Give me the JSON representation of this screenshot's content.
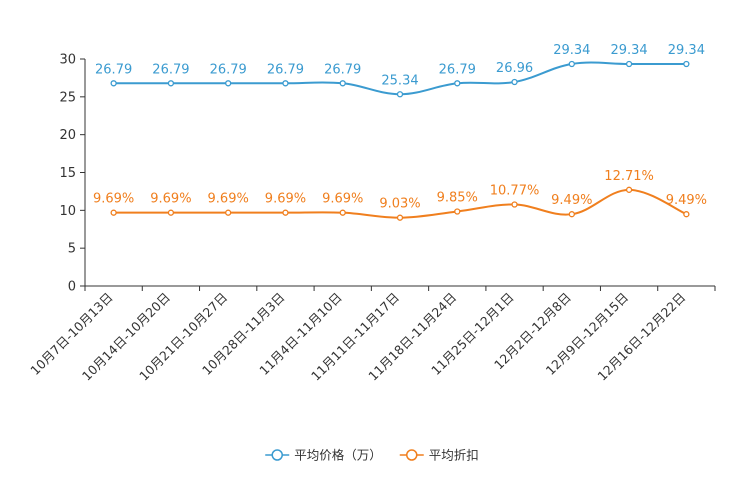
{
  "chart_data": {
    "type": "line",
    "categories": [
      "10月7日-10月13日",
      "10月14日-10月20日",
      "10月21日-10月27日",
      "10月28日-11月3日",
      "11月4日-11月10日",
      "11月11日-11月17日",
      "11月18日-11月24日",
      "11月25日-12月1日",
      "12月2日-12月8日",
      "12月9日-12月15日",
      "12月16日-12月22日"
    ],
    "ylim": [
      0,
      30
    ],
    "yticks": [
      0,
      5,
      10,
      15,
      20,
      25,
      30
    ],
    "legend_position": "bottom-center",
    "series": [
      {
        "name": "平均价格（万）",
        "color": "#3b9bd0",
        "values": [
          26.79,
          26.79,
          26.79,
          26.79,
          26.79,
          25.34,
          26.79,
          26.96,
          29.34,
          29.34,
          29.34
        ],
        "labels": [
          "26.79",
          "26.79",
          "26.79",
          "26.79",
          "26.79",
          "25.34",
          "26.79",
          "26.96",
          "29.34",
          "29.34",
          "29.34"
        ]
      },
      {
        "name": "平均折扣",
        "color": "#f07f1e",
        "values": [
          9.69,
          9.69,
          9.69,
          9.69,
          9.69,
          9.03,
          9.85,
          10.77,
          9.49,
          12.71,
          9.49
        ],
        "labels": [
          "9.69%",
          "9.69%",
          "9.69%",
          "9.69%",
          "9.69%",
          "9.03%",
          "9.85%",
          "10.77%",
          "9.49%",
          "12.71%",
          "9.49%"
        ]
      }
    ]
  }
}
